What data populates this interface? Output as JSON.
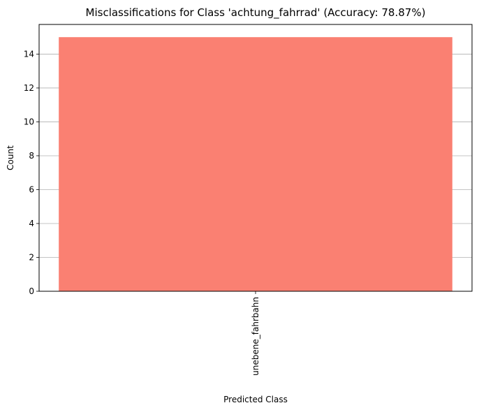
{
  "chart_data": {
    "type": "bar",
    "title": "Misclassifications for Class 'achtung_fahrrad' (Accuracy: 78.87%)",
    "xlabel": "Predicted Class",
    "ylabel": "Count",
    "categories": [
      "unebene_fahrbahn"
    ],
    "values": [
      15
    ],
    "ylim": [
      0,
      15.75
    ],
    "yticks": [
      0,
      2,
      4,
      6,
      8,
      10,
      12,
      14
    ],
    "bar_color": "#fa8072",
    "grid": "y",
    "legend": "none"
  }
}
